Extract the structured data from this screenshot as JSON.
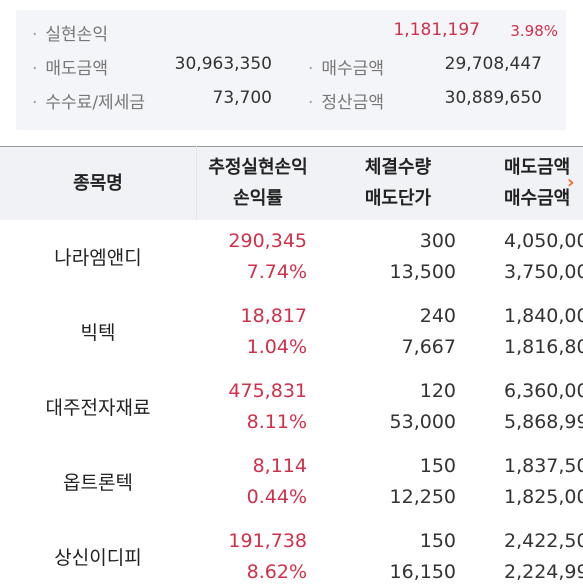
{
  "summary": {
    "realized_label": "실현손익",
    "realized_value": "1,181,197",
    "realized_rate": "3.98%",
    "sell_label": "매도금액",
    "sell_value": "30,963,350",
    "buy_label": "매수금액",
    "buy_value": "29,708,447",
    "fee_label": "수수료/제세금",
    "fee_value": "73,700",
    "settle_label": "정산금액",
    "settle_value": "30,889,650"
  },
  "table": {
    "headers": {
      "name": "종목명",
      "pl_1": "추정실현손익",
      "pl_2": "손익률",
      "qty_1": "체결수량",
      "qty_2": "매도단가",
      "amt_1": "매도금액",
      "amt_2": "매수금액"
    },
    "rows": [
      {
        "name": "나라엠앤디",
        "pl": "290,345",
        "rate": "7.74%",
        "qty": "300",
        "price": "13,500",
        "sell_amt": "4,050,00",
        "buy_amt": "3,750,00"
      },
      {
        "name": "빅텍",
        "pl": "18,817",
        "rate": "1.04%",
        "qty": "240",
        "price": "7,667",
        "sell_amt": "1,840,00",
        "buy_amt": "1,816,80"
      },
      {
        "name": "대주전자재료",
        "pl": "475,831",
        "rate": "8.11%",
        "qty": "120",
        "price": "53,000",
        "sell_amt": "6,360,00",
        "buy_amt": "5,868,99"
      },
      {
        "name": "옵트론텍",
        "pl": "8,114",
        "rate": "0.44%",
        "qty": "150",
        "price": "12,250",
        "sell_amt": "1,837,50",
        "buy_amt": "1,825,00"
      },
      {
        "name": "상신이디피",
        "pl": "191,738",
        "rate": "8.62%",
        "qty": "150",
        "price": "16,150",
        "sell_amt": "2,422,50",
        "buy_amt": "2,224,99"
      }
    ]
  },
  "colors": {
    "profit": "#d1304a",
    "arrow": "#f26a28",
    "header_bg": "#f1f2f6",
    "summary_bg": "#f4f5f9"
  },
  "icons": {
    "scroll_right": "chevron-right-icon"
  }
}
